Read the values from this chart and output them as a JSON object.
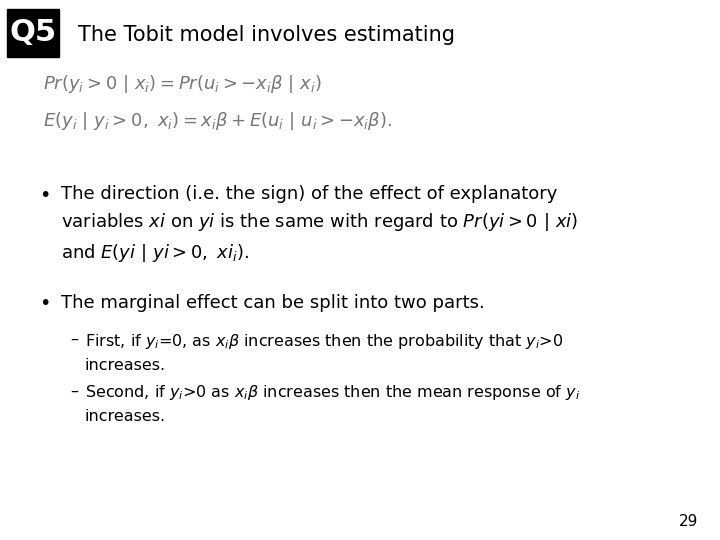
{
  "background_color": "#ffffff",
  "q_label": "Q5",
  "q_label_bg": "#000000",
  "q_label_color": "#ffffff",
  "title": "The Tobit model involves estimating",
  "page_number": "29",
  "title_fontsize": 15,
  "formula_fontsize": 13,
  "bullet_fontsize": 13,
  "sub_fontsize": 11.5,
  "page_fontsize": 11
}
